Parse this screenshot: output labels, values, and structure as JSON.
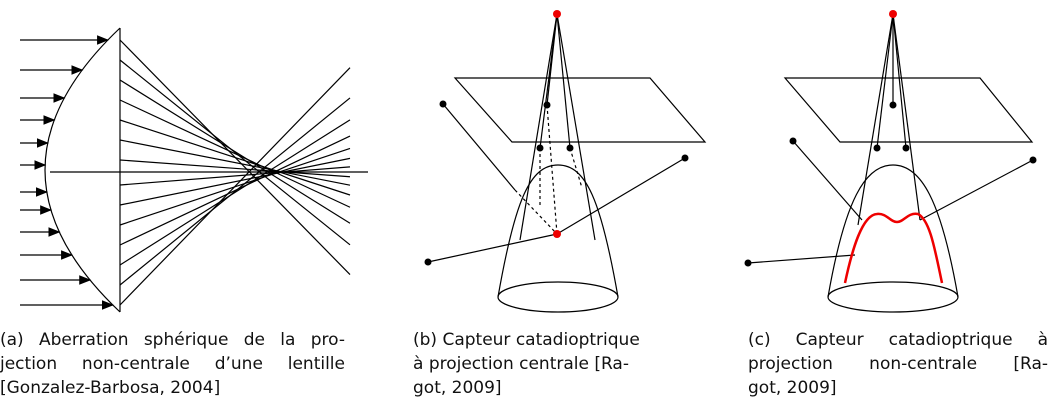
{
  "figures": [
    {
      "caption_lines": [
        "(a) Aberration sphérique de la pro-",
        "jection non-centrale d’une lentille",
        "[Gonzalez-Barbosa, 2004]"
      ]
    },
    {
      "caption_lines": [
        "(b) Capteur catadioptrique",
        "à projection centrale [Ra-",
        "got, 2009]"
      ]
    },
    {
      "caption_lines": [
        "(c) Capteur catadioptrique à",
        "projection non-centrale [Ra-",
        "got, 2009]"
      ]
    }
  ]
}
